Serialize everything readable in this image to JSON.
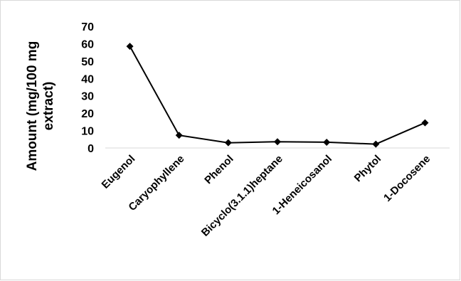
{
  "chart_data": {
    "type": "line",
    "title": "",
    "xlabel": "",
    "ylabel_line1": "Amount (mg/100 mg",
    "ylabel_line2": "extract)",
    "categories": [
      "Eugenol",
      "Caryophyllene",
      "Phenol",
      "Bicyclo(3.1.1)heptane",
      "1-Heneicosanol",
      "Phytol",
      "1-Docosene"
    ],
    "series": [
      {
        "values": [
          58.5,
          7.3,
          3.0,
          3.6,
          3.3,
          2.2,
          14.5
        ]
      }
    ],
    "ylim": [
      0,
      70
    ],
    "yticks": [
      "0",
      "10",
      "20",
      "30",
      "40",
      "50",
      "60",
      "70"
    ],
    "grid": false,
    "legend": "none",
    "marker": "diamond",
    "line_color": "#000000",
    "axis_color": "#d9d9d9"
  }
}
